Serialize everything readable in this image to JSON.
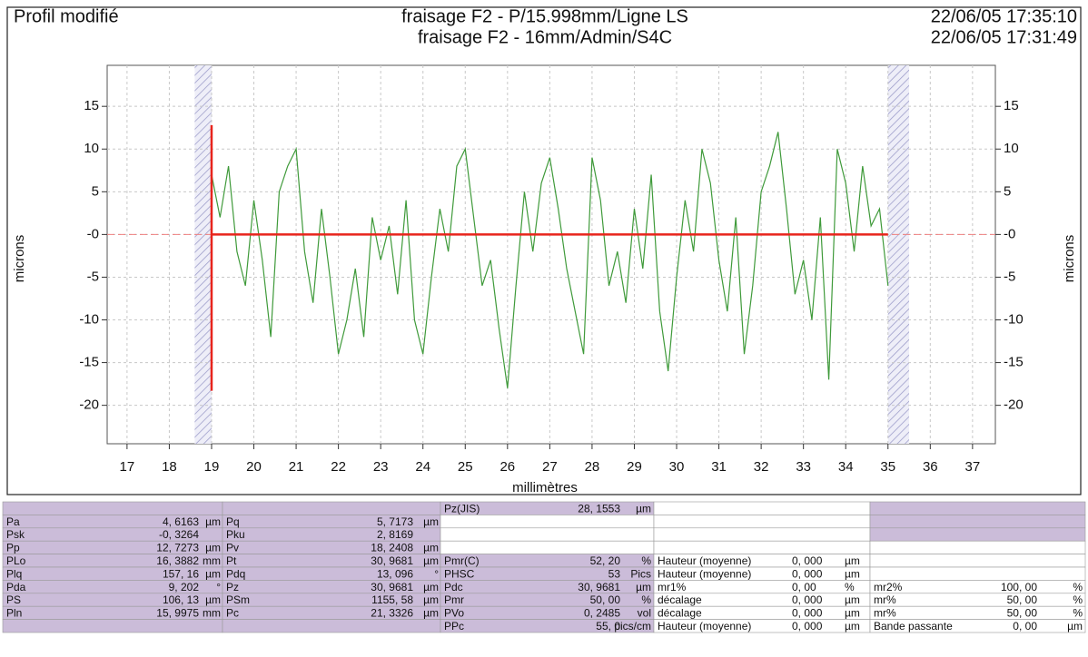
{
  "chart_data": {
    "type": "line",
    "title": "Profil modifié",
    "subtitle": [
      "fraisage F2 - P/15.998mm/Ligne LS",
      "fraisage F2 - 16mm/Admin/S4C"
    ],
    "dates": [
      "22/06/05 17:35:10",
      "22/06/05 17:31:49"
    ],
    "xlabel": "millimètres",
    "ylabel": "microns",
    "y2label": "microns",
    "xlim": [
      16.53,
      37.54
    ],
    "ylim": [
      -24.5,
      19.8
    ],
    "xticks": [
      17,
      18,
      19,
      20,
      21,
      22,
      23,
      24,
      25,
      26,
      27,
      28,
      29,
      30,
      31,
      32,
      33,
      34,
      35,
      36,
      37
    ],
    "yticks": [
      15,
      10,
      5,
      {
        "value": 0,
        "label": "-0"
      },
      -5,
      -10,
      -15,
      -20
    ],
    "grid": true,
    "excluded_zones": [
      [
        18.6,
        19.0
      ],
      [
        35.0,
        35.5
      ]
    ],
    "reference_line": {
      "y": 0,
      "x": [
        19,
        35
      ],
      "color": "#e8241c"
    },
    "vertical_marker": {
      "x": 19,
      "y": [
        -18.3,
        12.8
      ],
      "color": "#e8241c"
    },
    "series": [
      {
        "name": "profil",
        "color": "#3f9a3a",
        "x": [
          19.0,
          19.2,
          19.4,
          19.6,
          19.8,
          20.0,
          20.2,
          20.4,
          20.6,
          20.8,
          21.0,
          21.2,
          21.4,
          21.6,
          21.8,
          22.0,
          22.2,
          22.4,
          22.6,
          22.8,
          23.0,
          23.2,
          23.4,
          23.6,
          23.8,
          24.0,
          24.2,
          24.4,
          24.6,
          24.8,
          25.0,
          25.2,
          25.4,
          25.6,
          25.8,
          26.0,
          26.2,
          26.4,
          26.6,
          26.8,
          27.0,
          27.2,
          27.4,
          27.6,
          27.8,
          28.0,
          28.2,
          28.4,
          28.6,
          28.8,
          29.0,
          29.2,
          29.4,
          29.6,
          29.8,
          30.0,
          30.2,
          30.4,
          30.6,
          30.8,
          31.0,
          31.2,
          31.4,
          31.6,
          31.8,
          32.0,
          32.2,
          32.4,
          32.6,
          32.8,
          33.0,
          33.2,
          33.4,
          33.6,
          33.8,
          34.0,
          34.2,
          34.4,
          34.6,
          34.8,
          35.0
        ],
        "values": [
          7,
          2,
          8,
          -2,
          -6,
          4,
          -3,
          -12,
          5,
          8,
          10,
          -2,
          -8,
          3,
          -5,
          -14,
          -10,
          -4,
          -12,
          2,
          -3,
          1,
          -7,
          4,
          -10,
          -14,
          -5,
          3,
          -2,
          8,
          10,
          2,
          -6,
          -3,
          -11,
          -18,
          -6,
          5,
          -2,
          6,
          9,
          3,
          -4,
          -9,
          -14,
          9,
          4,
          -6,
          -2,
          -8,
          3,
          -4,
          7,
          -9,
          -16,
          -5,
          4,
          -2,
          10,
          6,
          -3,
          -9,
          2,
          -14,
          -6,
          5,
          8,
          12,
          3,
          -7,
          -3,
          -10,
          2,
          -17,
          10,
          6,
          -2,
          8,
          1,
          3,
          -6
        ]
      }
    ]
  },
  "table": {
    "rows": [
      [
        null,
        null,
        [
          "Pz(JIS)",
          "28, 1553",
          "µm"
        ],
        null,
        null
      ],
      [
        [
          "Pa",
          "4, 6163",
          "µm"
        ],
        [
          "Pq",
          "5, 7173",
          "µm"
        ],
        null,
        null,
        null
      ],
      [
        [
          "Psk",
          "-0, 3264"
        ],
        [
          "Pku",
          "2, 8169"
        ],
        null,
        null,
        null
      ],
      [
        [
          "Pp",
          "12, 7273",
          "µm"
        ],
        [
          "Pv",
          "18, 2408",
          "µm"
        ],
        null,
        null,
        null
      ],
      [
        [
          "PLo",
          "16, 3882",
          "mm"
        ],
        [
          "Pt",
          "30, 9681",
          "µm"
        ],
        [
          "Pmr(C)",
          "52, 20",
          "%"
        ],
        [
          "Hauteur (moyenne)",
          "0, 000",
          "µm"
        ],
        null
      ],
      [
        [
          "Plq",
          "157, 16",
          "µm"
        ],
        [
          "Pdq",
          "13, 096",
          "°"
        ],
        [
          "PHSC",
          "53",
          "Pics"
        ],
        [
          "Hauteur (moyenne)",
          "0, 000",
          "µm"
        ],
        null
      ],
      [
        [
          "Pda",
          "9, 202",
          "°"
        ],
        [
          "Pz",
          "30, 9681",
          "µm"
        ],
        [
          "Pdc",
          "30, 9681",
          "µm"
        ],
        [
          "mr1%",
          "0, 00",
          "%"
        ],
        [
          "mr2%",
          "100, 00",
          "%"
        ]
      ],
      [
        [
          "PS",
          "106, 13",
          "µm"
        ],
        [
          "PSm",
          "1155, 58",
          "µm"
        ],
        [
          "Pmr",
          "50, 00",
          "%"
        ],
        [
          "décalage",
          "0, 000",
          "µm"
        ],
        [
          "mr%",
          "50, 00",
          "%"
        ]
      ],
      [
        [
          "Pln",
          "15, 9975",
          "mm"
        ],
        [
          "Pc",
          "21, 3326",
          "µm"
        ],
        [
          "PVo",
          "0, 2485",
          "vol"
        ],
        [
          "décalage",
          "0, 000",
          "µm"
        ],
        [
          "mr%",
          "50, 00",
          "%"
        ]
      ],
      [
        null,
        null,
        [
          "PPc",
          "55, 0",
          "pics/cm"
        ],
        [
          "Hauteur (moyenne)",
          "0, 000",
          "µm"
        ],
        [
          "Bande passante",
          "0, 00",
          "µm"
        ]
      ]
    ]
  }
}
